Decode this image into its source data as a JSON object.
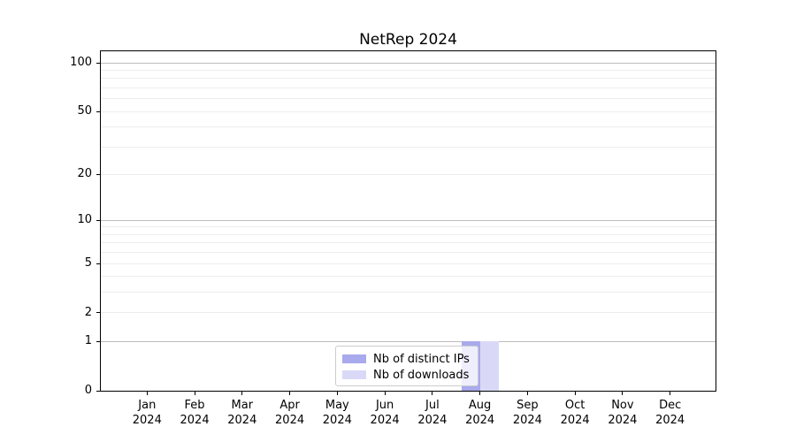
{
  "chart_data": {
    "type": "bar",
    "title": "NetRep 2024",
    "categories": [
      "Jan",
      "Feb",
      "Mar",
      "Apr",
      "May",
      "Jun",
      "Jul",
      "Aug",
      "Sep",
      "Oct",
      "Nov",
      "Dec"
    ],
    "year_label": "2024",
    "series": [
      {
        "name": "Nb of distinct IPs",
        "color": "#a9a9ed",
        "values": [
          0,
          0,
          0,
          0,
          0,
          0,
          0,
          1,
          0,
          0,
          0,
          0
        ]
      },
      {
        "name": "Nb of downloads",
        "color": "#d9d9f7",
        "values": [
          0,
          0,
          0,
          0,
          0,
          0,
          0,
          1,
          0,
          0,
          0,
          0
        ]
      }
    ],
    "xlabel": "",
    "ylabel": "",
    "yscale": "log10(1+y)",
    "ylim": [
      0,
      117
    ],
    "yticks": [
      0,
      1,
      2,
      5,
      10,
      20,
      50,
      100
    ],
    "major_gridlines": [
      1,
      10,
      100
    ],
    "minor_gridlines": [
      2,
      3,
      4,
      5,
      6,
      7,
      8,
      9,
      20,
      30,
      40,
      50,
      60,
      70,
      80,
      90
    ],
    "grid": "on",
    "legend_position": "lower-center-inside"
  },
  "colors": {
    "grid_major": "#bdbdbd",
    "grid_minor": "#ededed",
    "spine": "#000000",
    "text": "#000000",
    "background": "#ffffff"
  }
}
